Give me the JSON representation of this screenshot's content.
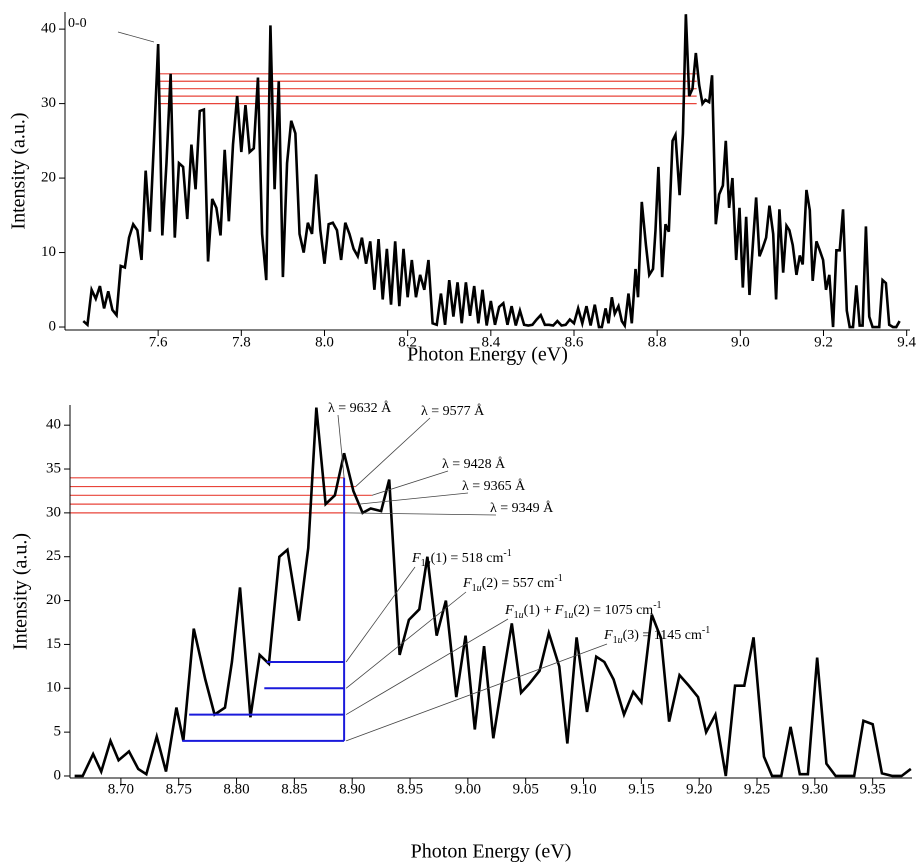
{
  "chart_data": [
    {
      "type": "line",
      "xlabel": "Photon Energy (eV)",
      "ylabel": "Intensity (a.u.)",
      "xlim": [
        7.376,
        9.408
      ],
      "ylim": [
        -0.4,
        42.3
      ],
      "xticks": [
        7.6,
        7.8,
        {
          "value": 8,
          "label": "8.0"
        },
        8.2,
        8.4,
        8.6,
        8.8,
        {
          "value": 9,
          "label": "9.0"
        },
        9.2,
        9.4
      ],
      "yticks": [
        0,
        10,
        20,
        30,
        40
      ],
      "color": "#000000",
      "x": [
        7.42,
        7.43,
        7.44,
        7.45,
        7.46,
        7.47,
        7.48,
        7.49,
        7.5,
        7.51,
        7.52,
        7.53,
        7.54,
        7.55,
        7.56,
        7.57,
        7.58,
        7.59,
        7.6,
        7.61,
        7.62,
        7.63,
        7.64,
        7.65,
        7.66,
        7.67,
        7.68,
        7.69,
        7.7,
        7.71,
        7.72,
        7.73,
        7.74,
        7.75,
        7.76,
        7.77,
        7.78,
        7.79,
        7.8,
        7.81,
        7.82,
        7.83,
        7.84,
        7.85,
        7.86,
        7.87,
        7.88,
        7.89,
        7.9,
        7.91,
        7.92,
        7.93,
        7.94,
        7.95,
        7.96,
        7.97,
        7.98,
        7.99,
        8,
        8.01,
        8.02,
        8.03,
        8.04,
        8.05,
        8.06,
        8.07,
        8.08,
        8.09,
        8.1,
        8.11,
        8.12,
        8.13,
        8.14,
        8.15,
        8.16,
        8.17,
        8.18,
        8.19,
        8.2,
        8.21,
        8.22,
        8.23,
        8.24,
        8.25,
        8.26,
        8.27,
        8.28,
        8.29,
        8.3,
        8.31,
        8.32,
        8.33,
        8.34,
        8.35,
        8.36,
        8.37,
        8.38,
        8.39,
        8.4,
        8.41,
        8.42,
        8.43,
        8.44,
        8.45,
        8.46,
        8.47,
        8.48,
        8.49,
        8.5,
        8.51,
        8.52,
        8.53,
        8.54,
        8.55,
        8.56,
        8.57,
        8.58,
        8.59,
        8.6,
        8.61,
        8.62,
        8.63,
        8.64,
        8.65,
        8.66,
        8.667,
        8.676,
        8.683,
        8.691,
        8.698,
        8.707,
        8.715,
        8.722,
        8.731,
        8.739,
        8.748,
        8.754,
        8.763,
        8.773,
        8.781,
        8.79,
        8.796,
        8.803,
        8.812,
        8.82,
        8.828,
        8.837,
        8.844,
        8.854,
        8.862,
        8.869,
        8.877,
        8.885,
        8.893,
        8.901,
        8.909,
        8.916,
        8.925,
        8.932,
        8.941,
        8.949,
        8.958,
        8.965,
        8.973,
        8.981,
        8.99,
        8.998,
        9.006,
        9.014,
        9.022,
        9.031,
        9.038,
        9.046,
        9.053,
        9.062,
        9.07,
        9.079,
        9.086,
        9.094,
        9.103,
        9.111,
        9.118,
        9.126,
        9.135,
        9.143,
        9.15,
        9.159,
        9.167,
        9.174,
        9.183,
        9.191,
        9.199,
        9.206,
        9.214,
        9.223,
        9.231,
        9.239,
        9.247,
        9.256,
        9.263,
        9.271,
        9.279,
        9.287,
        9.294,
        9.302,
        9.31,
        9.318,
        9.326,
        9.334,
        9.342,
        9.35,
        9.358,
        9.367,
        9.375,
        9.383
      ],
      "values": [
        0.8,
        0.3,
        5,
        3.8,
        5.5,
        2.5,
        4.8,
        2.3,
        1.6,
        8.2,
        8,
        12,
        13.8,
        13,
        9,
        21,
        12.8,
        25,
        38,
        12.3,
        22,
        34,
        12,
        22,
        21.5,
        14.5,
        24.5,
        18.5,
        29,
        29.2,
        8.8,
        17.2,
        16,
        12.3,
        23.8,
        14.2,
        24.5,
        31,
        23.5,
        29.8,
        23.5,
        24,
        33.5,
        12.5,
        6.3,
        40.5,
        18.5,
        33,
        6.7,
        22,
        27.7,
        26,
        12.5,
        10,
        14,
        12.5,
        20.5,
        13,
        8.5,
        13.8,
        14,
        13,
        9,
        14,
        12.5,
        10.5,
        9.5,
        12,
        8.5,
        11.5,
        5,
        11.8,
        3.7,
        10.5,
        3,
        11.5,
        2.8,
        10.5,
        4,
        9,
        4,
        7,
        5,
        9,
        0.5,
        0.3,
        4.5,
        0.3,
        6.3,
        1.4,
        6,
        0.5,
        6,
        1.5,
        5.5,
        0.5,
        5,
        0.2,
        3.5,
        0.3,
        2.7,
        3.2,
        0.3,
        2.8,
        0.2,
        2.2,
        0.3,
        0.2,
        0.3,
        1,
        1.6,
        0.3,
        0.3,
        0.2,
        0.8,
        0.2,
        0.3,
        1,
        0.5,
        2.5,
        0.5,
        2.8,
        0.2,
        3,
        0,
        0,
        2.5,
        0.5,
        4,
        1.8,
        2.8,
        0.8,
        0.2,
        4.5,
        0.5,
        7.8,
        4,
        16.8,
        11,
        7,
        7.8,
        13,
        21.5,
        6.7,
        13.8,
        12.8,
        25,
        25.8,
        17.7,
        26,
        42,
        31,
        32,
        36.8,
        32.5,
        30,
        30.5,
        30.2,
        33.8,
        13.8,
        17.8,
        19,
        25,
        16,
        20,
        9,
        16,
        5.3,
        14.8,
        4.3,
        11.8,
        17.4,
        9.5,
        10.5,
        12,
        16.3,
        12.5,
        3.7,
        15.8,
        7.3,
        13.6,
        13,
        11,
        7,
        9.6,
        8.4,
        18.4,
        15.7,
        6.2,
        11.5,
        10.3,
        9,
        5,
        7,
        0,
        10.3,
        10.3,
        15.8,
        2.2,
        0,
        0,
        5.6,
        0.2,
        0.2,
        13.5,
        1.4,
        0,
        0,
        0,
        6.3,
        5.9,
        0.3,
        0,
        0,
        0.8
      ],
      "hline_color": "#e8443a",
      "hlines": [
        {
          "y": 30,
          "x0": 7.6,
          "x1": 8.895
        },
        {
          "y": 31,
          "x0": 7.6,
          "x1": 8.895
        },
        {
          "y": 32,
          "x0": 7.6,
          "x1": 8.895
        },
        {
          "y": 33,
          "x0": 7.6,
          "x1": 8.895
        },
        {
          "y": 34,
          "x0": 7.6,
          "x1": 8.895
        }
      ],
      "annotations": [
        {
          "segments": [
            {
              "text": "0-0",
              "style": "normal"
            }
          ]
        }
      ]
    },
    {
      "type": "line",
      "xlabel": "Photon Energy (eV)",
      "ylabel": "Intensity (a.u.)",
      "xlim": [
        8.656,
        9.384
      ],
      "ylim": [
        -0.23,
        42.3
      ],
      "xticks": [
        {
          "value": 8.7,
          "label": "8.70"
        },
        {
          "value": 8.75,
          "label": "8.75"
        },
        {
          "value": 8.8,
          "label": "8.80"
        },
        {
          "value": 8.85,
          "label": "8.85"
        },
        {
          "value": 8.9,
          "label": "8.90"
        },
        {
          "value": 8.95,
          "label": "8.95"
        },
        {
          "value": 9,
          "label": "9.00"
        },
        {
          "value": 9.05,
          "label": "9.05"
        },
        {
          "value": 9.1,
          "label": "9.10"
        },
        {
          "value": 9.15,
          "label": "9.15"
        },
        {
          "value": 9.2,
          "label": "9.20"
        },
        {
          "value": 9.25,
          "label": "9.25"
        },
        {
          "value": 9.3,
          "label": "9.30"
        },
        {
          "value": 9.35,
          "label": "9.35"
        }
      ],
      "yticks": [
        0,
        5,
        10,
        15,
        20,
        25,
        30,
        35,
        40
      ],
      "color": "#000000",
      "x": [
        8.66,
        8.667,
        8.676,
        8.683,
        8.691,
        8.698,
        8.707,
        8.715,
        8.722,
        8.731,
        8.739,
        8.748,
        8.754,
        8.763,
        8.773,
        8.781,
        8.79,
        8.796,
        8.803,
        8.812,
        8.82,
        8.828,
        8.837,
        8.844,
        8.854,
        8.862,
        8.869,
        8.877,
        8.885,
        8.893,
        8.901,
        8.909,
        8.916,
        8.925,
        8.932,
        8.941,
        8.949,
        8.958,
        8.965,
        8.973,
        8.981,
        8.99,
        8.998,
        9.006,
        9.014,
        9.022,
        9.031,
        9.038,
        9.046,
        9.053,
        9.062,
        9.07,
        9.079,
        9.086,
        9.094,
        9.103,
        9.111,
        9.118,
        9.126,
        9.135,
        9.143,
        9.15,
        9.159,
        9.167,
        9.174,
        9.183,
        9.191,
        9.199,
        9.206,
        9.214,
        9.223,
        9.231,
        9.239,
        9.247,
        9.256,
        9.263,
        9.271,
        9.279,
        9.287,
        9.294,
        9.302,
        9.31,
        9.318,
        9.326,
        9.334,
        9.342,
        9.35,
        9.358,
        9.367,
        9.375,
        9.383
      ],
      "values": [
        0,
        0,
        2.5,
        0.5,
        4,
        1.8,
        2.8,
        0.8,
        0.2,
        4.5,
        0.5,
        7.8,
        4,
        16.8,
        11,
        7,
        7.8,
        13,
        21.5,
        6.7,
        13.8,
        12.8,
        25,
        25.8,
        17.7,
        26,
        42,
        31,
        32,
        36.8,
        32.5,
        30,
        30.5,
        30.2,
        33.8,
        13.8,
        17.8,
        19,
        25,
        16,
        20,
        9,
        16,
        5.3,
        14.8,
        4.3,
        11.8,
        17.4,
        9.5,
        10.5,
        12,
        16.3,
        12.5,
        3.7,
        15.8,
        7.3,
        13.6,
        13,
        11,
        7,
        9.6,
        8.4,
        18.4,
        15.7,
        6.2,
        11.5,
        10.3,
        9,
        5,
        7,
        0,
        10.3,
        10.3,
        15.8,
        2.2,
        0,
        0,
        5.6,
        0.2,
        0.2,
        13.5,
        1.4,
        0,
        0,
        0,
        6.3,
        5.9,
        0.3,
        0,
        0,
        0.8
      ],
      "hline_color": "#e8443a",
      "hlines": [
        {
          "y": 34,
          "x0": 8.656,
          "x1": 8.893
        },
        {
          "y": 33,
          "x0": 8.656,
          "x1": 8.903
        },
        {
          "y": 32,
          "x0": 8.656,
          "x1": 8.917
        },
        {
          "y": 31,
          "x0": 8.656,
          "x1": 8.906
        },
        {
          "y": 30,
          "x0": 8.656,
          "x1": 8.895
        }
      ],
      "blue_color": "#1a1adb",
      "vline": {
        "x": 8.893,
        "y0": 4,
        "y1": 34
      },
      "blue_lines": [
        {
          "y": 13,
          "x0": 8.826
        },
        {
          "y": 10,
          "x0": 8.824
        },
        {
          "y": 7,
          "x0": 8.759
        },
        {
          "y": 4,
          "x0": 8.753
        }
      ],
      "annotations": [
        {
          "segments": [
            {
              "text": "λ = 9632 Å",
              "style": "normal"
            }
          ]
        },
        {
          "segments": [
            {
              "text": "λ = 9577 Å",
              "style": "normal"
            }
          ]
        },
        {
          "segments": [
            {
              "text": "λ = 9428 Å",
              "style": "normal"
            }
          ]
        },
        {
          "segments": [
            {
              "text": "λ = 9365 Å",
              "style": "normal"
            }
          ]
        },
        {
          "segments": [
            {
              "text": "λ = 9349 Å",
              "style": "normal"
            }
          ]
        },
        {
          "segments": [
            {
              "text": "F",
              "style": "italic"
            },
            {
              "text": "1",
              "style": "sub"
            },
            {
              "text": "u",
              "style": "sub-italic"
            },
            {
              "text": "(1) = 518 cm",
              "style": "normal"
            },
            {
              "text": "-1",
              "style": "sup"
            }
          ]
        },
        {
          "segments": [
            {
              "text": "F",
              "style": "italic"
            },
            {
              "text": "1",
              "style": "sub"
            },
            {
              "text": "u",
              "style": "sub-italic"
            },
            {
              "text": "(2) = 557 cm",
              "style": "normal"
            },
            {
              "text": "-1",
              "style": "sup"
            }
          ]
        },
        {
          "segments": [
            {
              "text": "F",
              "style": "italic"
            },
            {
              "text": "1",
              "style": "sub"
            },
            {
              "text": "u",
              "style": "sub-italic"
            },
            {
              "text": "(1) + ",
              "style": "normal"
            },
            {
              "text": "F",
              "style": "italic"
            },
            {
              "text": "1",
              "style": "sub"
            },
            {
              "text": "u",
              "style": "sub-italic"
            },
            {
              "text": "(2) = 1075 cm",
              "style": "normal"
            },
            {
              "text": "-1",
              "style": "sup"
            }
          ]
        },
        {
          "segments": [
            {
              "text": "F",
              "style": "italic"
            },
            {
              "text": "1",
              "style": "sub"
            },
            {
              "text": "u",
              "style": "sub-italic"
            },
            {
              "text": "(3) = 1145 cm",
              "style": "normal"
            },
            {
              "text": "-1",
              "style": "sup"
            }
          ]
        }
      ]
    }
  ]
}
